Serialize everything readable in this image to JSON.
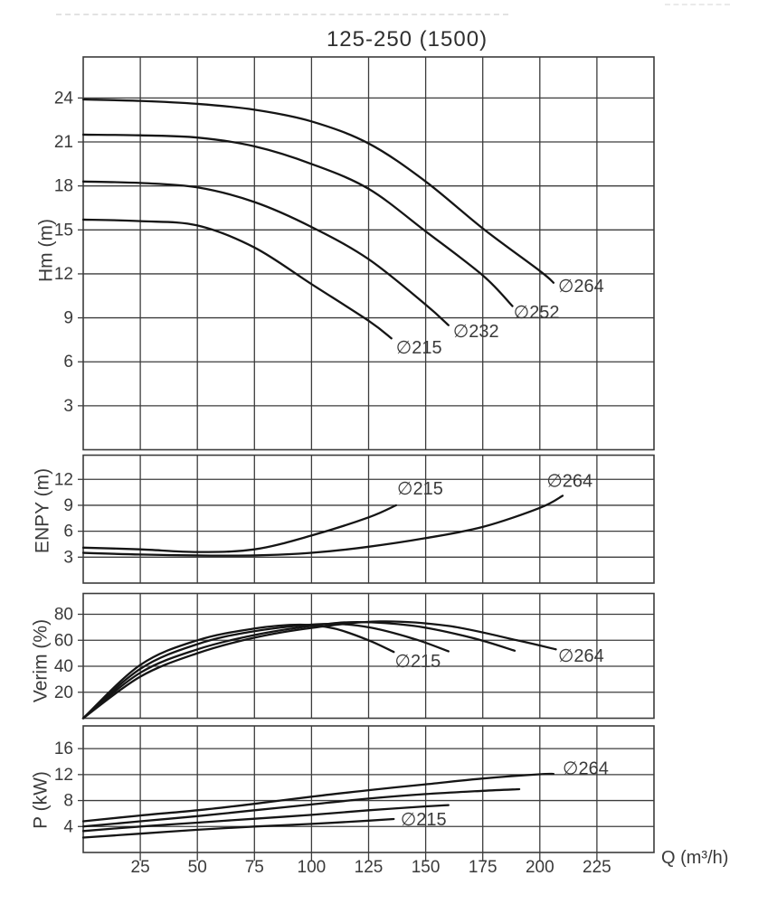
{
  "title": "125-250 (1500)",
  "chart_data": {
    "type": "line",
    "title": "125-250 (1500)",
    "x_axis": {
      "label": "Q (m³/h)",
      "min": 0,
      "max": 250,
      "gridline_step": 25,
      "tick_labels": [
        25,
        50,
        75,
        100,
        125,
        150,
        175,
        200,
        225
      ]
    },
    "legend_position": "inline-curve-labels",
    "grid": true,
    "panels": [
      {
        "id": "hm",
        "ylabel": "Hm (m)",
        "ymin": 0,
        "ymax": 26.8,
        "yticks": [
          3,
          6,
          9,
          12,
          15,
          18,
          21,
          24
        ],
        "series": [
          {
            "name": "∅264",
            "points": [
              [
                0,
                23.9
              ],
              [
                25,
                23.8
              ],
              [
                50,
                23.6
              ],
              [
                75,
                23.2
              ],
              [
                100,
                22.4
              ],
              [
                125,
                20.9
              ],
              [
                150,
                18.3
              ],
              [
                175,
                15.1
              ],
              [
                200,
                12.2
              ],
              [
                206,
                11.4
              ]
            ]
          },
          {
            "name": "∅252",
            "points": [
              [
                0,
                21.5
              ],
              [
                25,
                21.45
              ],
              [
                50,
                21.3
              ],
              [
                75,
                20.7
              ],
              [
                100,
                19.5
              ],
              [
                125,
                17.8
              ],
              [
                150,
                14.9
              ],
              [
                175,
                11.9
              ],
              [
                188,
                9.8
              ]
            ]
          },
          {
            "name": "∅232",
            "points": [
              [
                0,
                18.3
              ],
              [
                25,
                18.2
              ],
              [
                50,
                17.9
              ],
              [
                75,
                16.9
              ],
              [
                100,
                15.2
              ],
              [
                125,
                13.0
              ],
              [
                150,
                9.9
              ],
              [
                160,
                8.5
              ]
            ]
          },
          {
            "name": "∅215",
            "points": [
              [
                0,
                15.7
              ],
              [
                25,
                15.6
              ],
              [
                50,
                15.3
              ],
              [
                75,
                13.8
              ],
              [
                100,
                11.3
              ],
              [
                125,
                8.8
              ],
              [
                135,
                7.6
              ]
            ]
          }
        ],
        "curve_labels": [
          {
            "text": "∅215",
            "q": 137,
            "v": 6.9
          },
          {
            "text": "∅232",
            "q": 162,
            "v": 8.0
          },
          {
            "text": "∅252",
            "q": 188.5,
            "v": 9.3
          },
          {
            "text": "∅264",
            "q": 208,
            "v": 11.1
          }
        ]
      },
      {
        "id": "enpy",
        "ylabel": "ENPY (m)",
        "ymin": 0,
        "ymax": 14.8,
        "yticks": [
          3,
          6,
          9,
          12
        ],
        "series": [
          {
            "name": "∅215",
            "points": [
              [
                0,
                4.1
              ],
              [
                25,
                3.9
              ],
              [
                50,
                3.6
              ],
              [
                75,
                3.9
              ],
              [
                100,
                5.5
              ],
              [
                125,
                7.6
              ],
              [
                137,
                9.0
              ]
            ]
          },
          {
            "name": "∅264",
            "points": [
              [
                0,
                3.5
              ],
              [
                25,
                3.3
              ],
              [
                50,
                3.2
              ],
              [
                75,
                3.2
              ],
              [
                100,
                3.5
              ],
              [
                125,
                4.2
              ],
              [
                150,
                5.2
              ],
              [
                175,
                6.5
              ],
              [
                200,
                8.7
              ],
              [
                210,
                10.1
              ]
            ]
          }
        ],
        "curve_labels": [
          {
            "text": "∅215",
            "q": 137.5,
            "v": 10.8
          },
          {
            "text": "∅264",
            "q": 203,
            "v": 11.7
          }
        ]
      },
      {
        "id": "verim",
        "ylabel": "Verim (%)",
        "ymin": 0,
        "ymax": 96,
        "yticks": [
          20,
          40,
          60,
          80
        ],
        "series": [
          {
            "name": "∅215",
            "points": [
              [
                0,
                0
              ],
              [
                25,
                41
              ],
              [
                50,
                60
              ],
              [
                75,
                69
              ],
              [
                95,
                72
              ],
              [
                110,
                69
              ],
              [
                125,
                60
              ],
              [
                136,
                51
              ]
            ]
          },
          {
            "name": "∅232",
            "points": [
              [
                0,
                0
              ],
              [
                25,
                38
              ],
              [
                50,
                57
              ],
              [
                75,
                67
              ],
              [
                105,
                72.5
              ],
              [
                125,
                70
              ],
              [
                145,
                61
              ],
              [
                160,
                51.5
              ]
            ]
          },
          {
            "name": "∅252",
            "points": [
              [
                0,
                0
              ],
              [
                25,
                35
              ],
              [
                50,
                53
              ],
              [
                75,
                64
              ],
              [
                100,
                71
              ],
              [
                120,
                74
              ],
              [
                145,
                71
              ],
              [
                170,
                62
              ],
              [
                189,
                52
              ]
            ]
          },
          {
            "name": "∅264",
            "points": [
              [
                0,
                0
              ],
              [
                25,
                32
              ],
              [
                50,
                50
              ],
              [
                75,
                62
              ],
              [
                100,
                69.5
              ],
              [
                130,
                74.5
              ],
              [
                160,
                71
              ],
              [
                190,
                60
              ],
              [
                207,
                53
              ]
            ]
          }
        ],
        "curve_labels": [
          {
            "text": "∅215",
            "q": 136.5,
            "v": 43
          },
          {
            "text": "∅264",
            "q": 208,
            "v": 47
          }
        ]
      },
      {
        "id": "p",
        "ylabel": "P (kW)",
        "ymin": 0,
        "ymax": 19.5,
        "yticks": [
          4,
          8,
          12,
          16
        ],
        "series": [
          {
            "name": "∅264",
            "points": [
              [
                0,
                4.8
              ],
              [
                25,
                5.7
              ],
              [
                50,
                6.5
              ],
              [
                75,
                7.5
              ],
              [
                100,
                8.6
              ],
              [
                125,
                9.6
              ],
              [
                150,
                10.5
              ],
              [
                175,
                11.4
              ],
              [
                200,
                12.05
              ],
              [
                206,
                12.1
              ]
            ]
          },
          {
            "name": "∅252",
            "points": [
              [
                0,
                4.0
              ],
              [
                25,
                4.8
              ],
              [
                50,
                5.6
              ],
              [
                75,
                6.5
              ],
              [
                100,
                7.4
              ],
              [
                125,
                8.3
              ],
              [
                150,
                9.0
              ],
              [
                175,
                9.5
              ],
              [
                191,
                9.75
              ]
            ]
          },
          {
            "name": "∅232",
            "points": [
              [
                0,
                3.3
              ],
              [
                25,
                4.0
              ],
              [
                50,
                4.6
              ],
              [
                75,
                5.2
              ],
              [
                100,
                5.8
              ],
              [
                125,
                6.5
              ],
              [
                150,
                7.1
              ],
              [
                160,
                7.3
              ]
            ]
          },
          {
            "name": "∅215",
            "points": [
              [
                0,
                2.3
              ],
              [
                25,
                2.9
              ],
              [
                50,
                3.5
              ],
              [
                75,
                4.0
              ],
              [
                100,
                4.4
              ],
              [
                125,
                4.9
              ],
              [
                136,
                5.15
              ]
            ]
          }
        ],
        "curve_labels": [
          {
            "text": "∅215",
            "q": 139,
            "v": 4.9
          },
          {
            "text": "∅264",
            "q": 210,
            "v": 12.75
          }
        ]
      }
    ]
  },
  "colors": {
    "background": "#ffffff",
    "grid": "#3c3c3c",
    "curve": "#151515",
    "text": "#3a3a3a"
  }
}
